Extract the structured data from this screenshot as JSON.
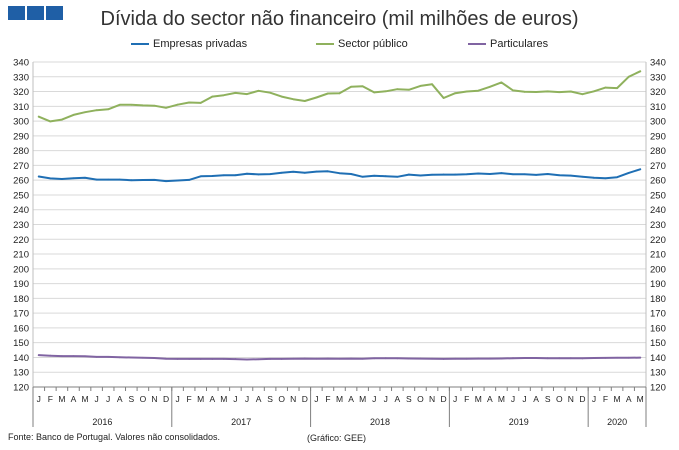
{
  "logo": {
    "icon": "institution-logo-squares",
    "color": "#1f5fa6"
  },
  "chart_data": {
    "type": "line",
    "title": "Dívida do sector não financeiro (mil milhões de euros)",
    "ylim": [
      120,
      340
    ],
    "y_ticks": [
      120,
      130,
      140,
      150,
      160,
      170,
      180,
      190,
      200,
      210,
      220,
      230,
      240,
      250,
      260,
      270,
      280,
      290,
      300,
      310,
      320,
      330,
      340
    ],
    "grid": true,
    "legend_position": "top",
    "x": [
      "J",
      "F",
      "M",
      "A",
      "M",
      "J",
      "J",
      "A",
      "S",
      "O",
      "N",
      "D",
      "J",
      "F",
      "M",
      "A",
      "M",
      "J",
      "J",
      "A",
      "S",
      "O",
      "N",
      "D",
      "J",
      "F",
      "M",
      "A",
      "M",
      "J",
      "J",
      "A",
      "S",
      "O",
      "N",
      "D",
      "J",
      "F",
      "M",
      "A",
      "M",
      "J",
      "J",
      "A",
      "S",
      "O",
      "N",
      "D",
      "J",
      "F",
      "M",
      "A",
      "M"
    ],
    "year_groups": [
      {
        "label": "2016",
        "months": 12
      },
      {
        "label": "2017",
        "months": 12
      },
      {
        "label": "2018",
        "months": 12
      },
      {
        "label": "2019",
        "months": 12
      },
      {
        "label": "2020",
        "months": 5
      }
    ],
    "series": [
      {
        "name": "Empresas privadas",
        "color": "#1f6fb4",
        "values": [
          262.5,
          261.2,
          260.8,
          261.3,
          261.6,
          260.4,
          260.4,
          260.4,
          260.0,
          260.1,
          260.2,
          259.4,
          259.8,
          260.2,
          262.6,
          262.8,
          263.3,
          263.4,
          264.4,
          263.9,
          264.1,
          265.0,
          265.7,
          265.0,
          265.8,
          266.0,
          264.7,
          264.2,
          262.3,
          263.0,
          262.7,
          262.3,
          263.8,
          263.2,
          263.7,
          263.8,
          263.8,
          264.0,
          264.5,
          264.2,
          264.8,
          264.0,
          264.0,
          263.6,
          264.2,
          263.4,
          263.1,
          262.3,
          261.6,
          261.3,
          262.0,
          264.9,
          267.4
        ]
      },
      {
        "name": "Sector público",
        "color": "#8fb15d",
        "values": [
          303.0,
          299.8,
          301.0,
          304.2,
          306.0,
          307.4,
          308.0,
          311.0,
          311.0,
          310.6,
          310.4,
          309.0,
          311.1,
          312.6,
          312.3,
          316.6,
          317.5,
          319.1,
          318.3,
          320.5,
          319.2,
          316.6,
          314.8,
          313.6,
          316.0,
          318.7,
          318.8,
          323.2,
          323.6,
          319.4,
          320.2,
          321.6,
          321.2,
          323.8,
          325.0,
          315.6,
          318.9,
          320.0,
          320.6,
          323.2,
          326.2,
          320.8,
          319.8,
          319.7,
          320.1,
          319.6,
          320.0,
          318.2,
          320.2,
          322.7,
          322.3,
          330.0,
          333.7
        ]
      },
      {
        "name": "Particulares",
        "color": "#8064a2",
        "values": [
          141.6,
          141.2,
          140.9,
          140.9,
          140.8,
          140.4,
          140.4,
          140.1,
          140.0,
          139.8,
          139.6,
          139.1,
          139.0,
          139.0,
          139.0,
          139.0,
          139.0,
          138.9,
          138.6,
          138.8,
          139.0,
          139.0,
          139.1,
          139.2,
          139.1,
          139.2,
          139.1,
          139.2,
          139.1,
          139.4,
          139.5,
          139.4,
          139.3,
          139.2,
          139.1,
          139.0,
          139.1,
          139.1,
          139.2,
          139.2,
          139.3,
          139.5,
          139.6,
          139.6,
          139.5,
          139.5,
          139.5,
          139.4,
          139.6,
          139.7,
          139.8,
          139.8,
          139.9
        ]
      }
    ]
  },
  "footer": {
    "source": "Fonte: Banco de Portugal. Valores não consolidados.",
    "credit": "(Gráfico: GEE)"
  }
}
